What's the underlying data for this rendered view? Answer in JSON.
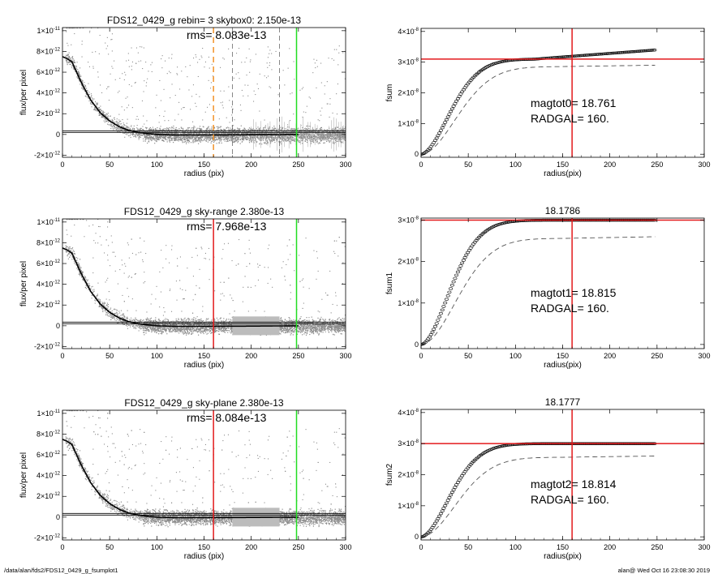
{
  "footer": {
    "path": "/data/alan/fds2/FDS12_0429_g_fsumplot1",
    "user_time": "alan@  Wed Oct 16 23:08:30 2019"
  },
  "colors": {
    "points": "#8c8c8c",
    "profile": "#000000",
    "orange_marker": "#f29227",
    "red_marker": "#e31a1c",
    "green_marker": "#22dd22",
    "dashed": "#555555"
  },
  "chart_data": [
    {
      "id": "profile-1",
      "type": "scatter",
      "title": "FDS12_0429_g rebin= 3    skybox0:  2.150e-13",
      "annotation": "rms= 8.083e-13",
      "xlabel": "radius (pix)",
      "ylabel": "flux/per pixel",
      "xlim": [
        0,
        300
      ],
      "ylim": [
        -2.2e-12,
        1.03e-11
      ],
      "xticks": [
        0,
        50,
        100,
        150,
        200,
        250,
        300
      ],
      "xtick_labels": [
        "0",
        "50",
        "100",
        "150",
        "200",
        "250",
        "300"
      ],
      "yticks": [
        -2e-12,
        0,
        2e-12,
        4e-12,
        6e-12,
        8e-12,
        1e-11
      ],
      "ytick_labels": [
        {
          "m": "-2×10",
          "e": "-12"
        },
        {
          "m": "0",
          "e": ""
        },
        {
          "m": "2×10",
          "e": "-12"
        },
        {
          "m": "4×10",
          "e": "-12"
        },
        {
          "m": "6×10",
          "e": "-12"
        },
        {
          "m": "8×10",
          "e": "-12"
        },
        {
          "m": "1×10",
          "e": "-11"
        }
      ],
      "profile": {
        "x": [
          0,
          5,
          10,
          15,
          20,
          30,
          40,
          50,
          60,
          70,
          80,
          90,
          100,
          120,
          150,
          200,
          250
        ],
        "y": [
          7.5e-12,
          7.3e-12,
          7e-12,
          6e-12,
          5e-12,
          3.3e-12,
          2.1e-12,
          1.3e-12,
          7.5e-13,
          4e-13,
          2e-13,
          8e-14,
          0.0,
          -5e-14,
          -5e-14,
          -3e-14,
          0.0
        ]
      },
      "hlines": [
        2e-13,
        3.5e-13
      ],
      "vlines": [
        {
          "x": 160,
          "style": "dashed",
          "color": "orange"
        },
        {
          "x": 180,
          "style": "dashed",
          "color": "gray"
        },
        {
          "x": 230,
          "style": "dashed",
          "color": "gray"
        },
        {
          "x": 248,
          "style": "solid",
          "color": "green"
        }
      ],
      "error_bars": true
    },
    {
      "id": "growth-1",
      "type": "line",
      "title": "",
      "xlabel": "radius(pix)",
      "ylabel": "fsum",
      "xlim": [
        0,
        300
      ],
      "ylim": [
        -1e-09,
        4.1e-08
      ],
      "xticks": [
        0,
        50,
        100,
        150,
        200,
        250,
        300
      ],
      "xtick_labels": [
        "0",
        "50",
        "100",
        "150",
        "200",
        "250",
        "300"
      ],
      "yticks": [
        0,
        1e-08,
        2e-08,
        3e-08,
        4e-08
      ],
      "ytick_labels": [
        {
          "m": "0",
          "e": ""
        },
        {
          "m": "1×10",
          "e": "-8"
        },
        {
          "m": "2×10",
          "e": "-8"
        },
        {
          "m": "3×10",
          "e": "-8"
        },
        {
          "m": "4×10",
          "e": "-8"
        }
      ],
      "plateau": 3.1e-08,
      "final": 3.4e-08,
      "dashed_final": 2.9e-08,
      "hline": 3.1e-08,
      "vline": 160,
      "text_lines": [
        "magtot0=  18.761",
        "RADGAL=     160."
      ]
    },
    {
      "id": "profile-2",
      "type": "scatter",
      "title": "FDS12_0429_g sky-range  2.380e-13",
      "annotation": "rms= 7.968e-13",
      "xlabel": "radius (pix)",
      "ylabel": "flux/per pixel",
      "xlim": [
        0,
        300
      ],
      "ylim": [
        -2.2e-12,
        1.03e-11
      ],
      "xticks": [
        0,
        50,
        100,
        150,
        200,
        250,
        300
      ],
      "xtick_labels": [
        "0",
        "50",
        "100",
        "150",
        "200",
        "250",
        "300"
      ],
      "yticks": [
        -2e-12,
        0,
        2e-12,
        4e-12,
        6e-12,
        8e-12,
        1e-11
      ],
      "ytick_labels": [
        {
          "m": "-2×10",
          "e": "-12"
        },
        {
          "m": "0",
          "e": ""
        },
        {
          "m": "2×10",
          "e": "-12"
        },
        {
          "m": "4×10",
          "e": "-12"
        },
        {
          "m": "6×10",
          "e": "-12"
        },
        {
          "m": "8×10",
          "e": "-12"
        },
        {
          "m": "1×10",
          "e": "-11"
        }
      ],
      "profile": {
        "x": [
          0,
          5,
          10,
          15,
          20,
          30,
          40,
          50,
          60,
          70,
          80,
          90,
          100,
          120,
          150,
          200,
          250
        ],
        "y": [
          7.5e-12,
          7.3e-12,
          7e-12,
          6e-12,
          5e-12,
          3.3e-12,
          2.1e-12,
          1.3e-12,
          7.5e-13,
          4e-13,
          2e-13,
          8e-14,
          0.0,
          -5e-14,
          -5e-14,
          -3e-14,
          0.0
        ]
      },
      "hlines": [
        2e-13,
        3.5e-13
      ],
      "vlines": [
        {
          "x": 160,
          "style": "solid",
          "color": "red"
        },
        {
          "x": 248,
          "style": "solid",
          "color": "green"
        }
      ],
      "error_bars": false
    },
    {
      "id": "growth-2",
      "type": "line",
      "title": "18.1786",
      "xlabel": "radius(pix)",
      "ylabel": "fsum1",
      "xlim": [
        0,
        300
      ],
      "ylim": [
        -1e-09,
        3.05e-08
      ],
      "xticks": [
        0,
        50,
        100,
        150,
        200,
        250,
        300
      ],
      "xtick_labels": [
        "0",
        "50",
        "100",
        "150",
        "200",
        "250",
        "300"
      ],
      "yticks": [
        0,
        1e-08,
        2e-08,
        3e-08
      ],
      "ytick_labels": [
        {
          "m": "0",
          "e": ""
        },
        {
          "m": "1×10",
          "e": "-8"
        },
        {
          "m": "2×10",
          "e": "-8"
        },
        {
          "m": "3×10",
          "e": "-8"
        }
      ],
      "plateau": 3e-08,
      "final": 3e-08,
      "dashed_final": 2.6e-08,
      "hline": 3e-08,
      "vline": 160,
      "text_lines": [
        "magtot1=  18.815",
        "RADGAL=     160."
      ]
    },
    {
      "id": "profile-3",
      "type": "scatter",
      "title": "FDS12_0429_g sky-plane  2.380e-13",
      "annotation": "rms= 8.084e-13",
      "xlabel": "radius (pix)",
      "ylabel": "flux/per pixel",
      "xlim": [
        0,
        300
      ],
      "ylim": [
        -2.2e-12,
        1.03e-11
      ],
      "xticks": [
        0,
        50,
        100,
        150,
        200,
        250,
        300
      ],
      "xtick_labels": [
        "0",
        "50",
        "100",
        "150",
        "200",
        "250",
        "300"
      ],
      "yticks": [
        -2e-12,
        0,
        2e-12,
        4e-12,
        6e-12,
        8e-12,
        1e-11
      ],
      "ytick_labels": [
        {
          "m": "-2×10",
          "e": "-12"
        },
        {
          "m": "0",
          "e": ""
        },
        {
          "m": "2×10",
          "e": "-12"
        },
        {
          "m": "4×10",
          "e": "-12"
        },
        {
          "m": "6×10",
          "e": "-12"
        },
        {
          "m": "8×10",
          "e": "-12"
        },
        {
          "m": "1×10",
          "e": "-11"
        }
      ],
      "profile": {
        "x": [
          0,
          5,
          10,
          15,
          20,
          30,
          40,
          50,
          60,
          70,
          80,
          90,
          100,
          120,
          150,
          200,
          250
        ],
        "y": [
          7.5e-12,
          7.3e-12,
          7e-12,
          6e-12,
          5e-12,
          3.3e-12,
          2.1e-12,
          1.3e-12,
          7.5e-13,
          4e-13,
          2e-13,
          8e-14,
          0.0,
          -5e-14,
          -5e-14,
          -3e-14,
          0.0
        ]
      },
      "hlines": [
        2e-13,
        3.5e-13
      ],
      "vlines": [
        {
          "x": 160,
          "style": "solid",
          "color": "red"
        },
        {
          "x": 248,
          "style": "solid",
          "color": "green"
        }
      ],
      "error_bars": false
    },
    {
      "id": "growth-3",
      "type": "line",
      "title": "18.1777",
      "xlabel": "radius(pix)",
      "ylabel": "fsum2",
      "xlim": [
        0,
        300
      ],
      "ylim": [
        -1e-09,
        4.1e-08
      ],
      "xticks": [
        0,
        50,
        100,
        150,
        200,
        250,
        300
      ],
      "xtick_labels": [
        "0",
        "50",
        "100",
        "150",
        "200",
        "250",
        "300"
      ],
      "yticks": [
        0,
        1e-08,
        2e-08,
        3e-08,
        4e-08
      ],
      "ytick_labels": [
        {
          "m": "0",
          "e": ""
        },
        {
          "m": "1×10",
          "e": "-8"
        },
        {
          "m": "2×10",
          "e": "-8"
        },
        {
          "m": "3×10",
          "e": "-8"
        },
        {
          "m": "4×10",
          "e": "-8"
        }
      ],
      "plateau": 3e-08,
      "final": 3e-08,
      "dashed_final": 2.6e-08,
      "hline": 3e-08,
      "vline": 160,
      "text_lines": [
        "magtot2=  18.814",
        "RADGAL=     160."
      ]
    }
  ]
}
